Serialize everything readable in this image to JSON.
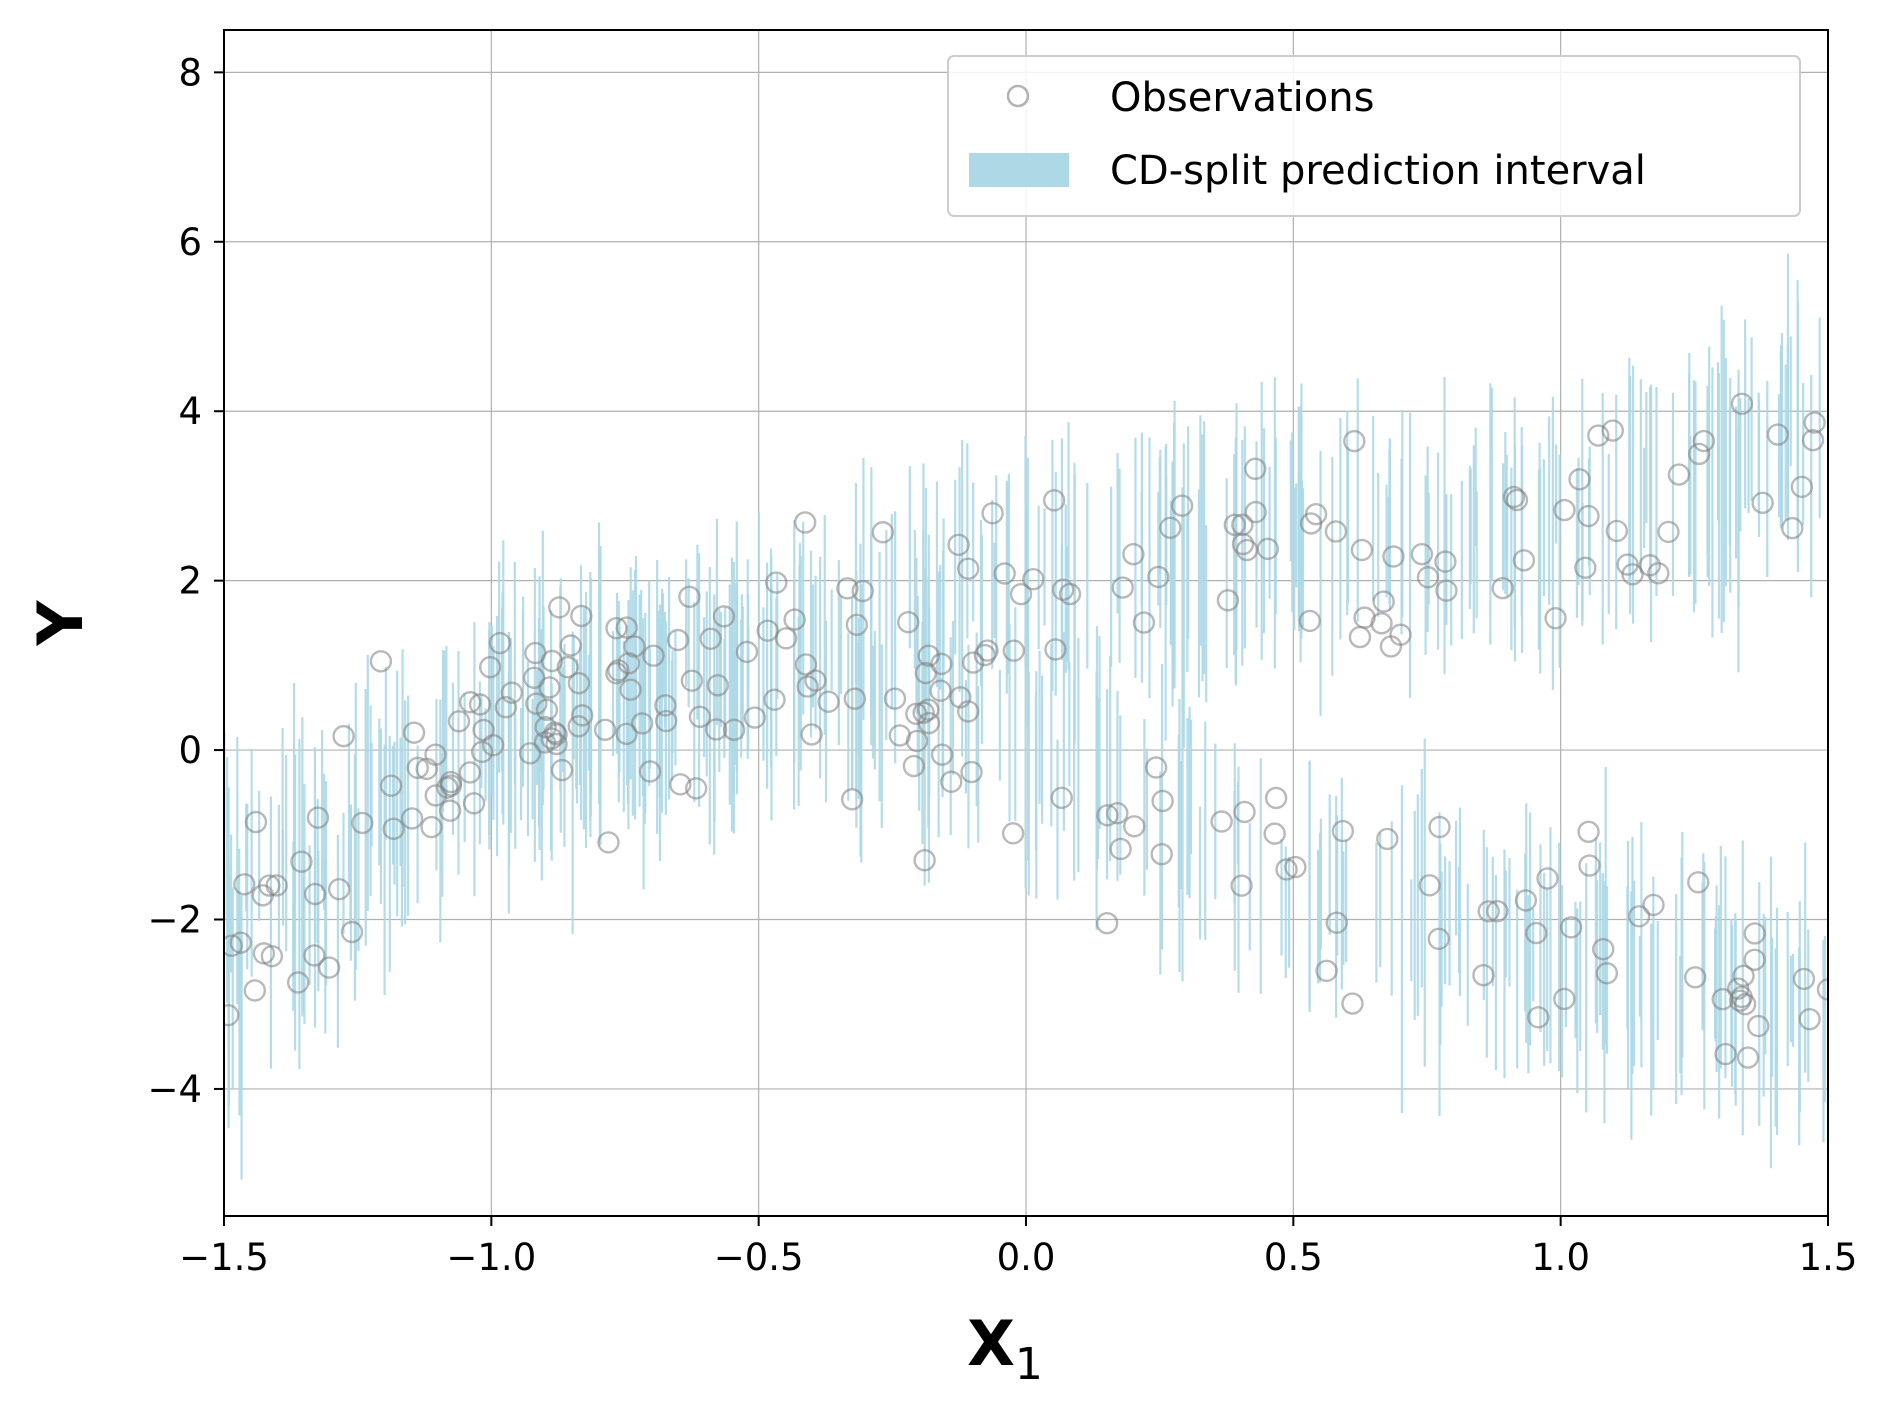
{
  "chart_data": {
    "type": "scatter",
    "title": "",
    "xlabel": "X",
    "xlabel_subscript": "1",
    "ylabel": "Y",
    "xlim": [
      -1.5,
      1.5
    ],
    "ylim": [
      -5.5,
      8.5
    ],
    "xticks": [
      -1.5,
      -1.0,
      -0.5,
      0.0,
      0.5,
      1.0,
      1.5
    ],
    "xtick_labels": [
      "−1.5",
      "−1.0",
      "−0.5",
      "0.0",
      "0.5",
      "1.0",
      "1.5"
    ],
    "yticks": [
      -4,
      -2,
      0,
      2,
      4,
      6,
      8
    ],
    "ytick_labels": [
      "−4",
      "−2",
      "0",
      "2",
      "4",
      "6",
      "8"
    ],
    "grid": true,
    "legend_position": "top-right",
    "series": [
      {
        "name": "Observations",
        "kind": "scatter",
        "marker": "open-circle",
        "color": "#808080",
        "points_per_branch": 130,
        "noise_sd": 0.6,
        "branches": [
          {
            "id": "upper",
            "x_range": [
              -1.5,
              1.5
            ],
            "curve": [
              [
                -1.5,
                -1.4
              ],
              [
                -1.0,
                0.3
              ],
              [
                -0.5,
                1.2
              ],
              [
                0.0,
                2.0
              ],
              [
                0.5,
                2.5
              ],
              [
                1.0,
                2.6
              ],
              [
                1.5,
                3.8
              ]
            ]
          },
          {
            "id": "lower",
            "x_range": [
              -1.5,
              1.5
            ],
            "curve": [
              [
                -1.5,
                -2.8
              ],
              [
                -1.0,
                -0.1
              ],
              [
                -0.5,
                0.9
              ],
              [
                0.0,
                0.1
              ],
              [
                0.5,
                -1.6
              ],
              [
                1.0,
                -2.4
              ],
              [
                1.5,
                -3.2
              ]
            ]
          }
        ]
      },
      {
        "name": "CD-split prediction interval",
        "kind": "interval",
        "color": "#add8e6",
        "segments_per_branch": 300,
        "half_width_range": [
          0.6,
          1.6
        ],
        "branches": [
          {
            "id": "upper-band",
            "curve": [
              [
                -1.5,
                -1.4
              ],
              [
                -1.0,
                0.3
              ],
              [
                -0.5,
                1.2
              ],
              [
                0.0,
                2.0
              ],
              [
                0.5,
                2.5
              ],
              [
                1.0,
                2.6
              ],
              [
                1.5,
                3.8
              ]
            ]
          },
          {
            "id": "lower-band",
            "curve": [
              [
                -1.5,
                -2.8
              ],
              [
                -1.0,
                -0.1
              ],
              [
                -0.5,
                0.9
              ],
              [
                0.0,
                0.1
              ],
              [
                0.5,
                -1.6
              ],
              [
                1.0,
                -2.4
              ],
              [
                1.5,
                -3.2
              ]
            ]
          }
        ]
      }
    ],
    "legend": [
      {
        "label": "Observations",
        "marker": "open-circle"
      },
      {
        "label": "CD-split prediction interval",
        "marker": "patch"
      }
    ]
  }
}
